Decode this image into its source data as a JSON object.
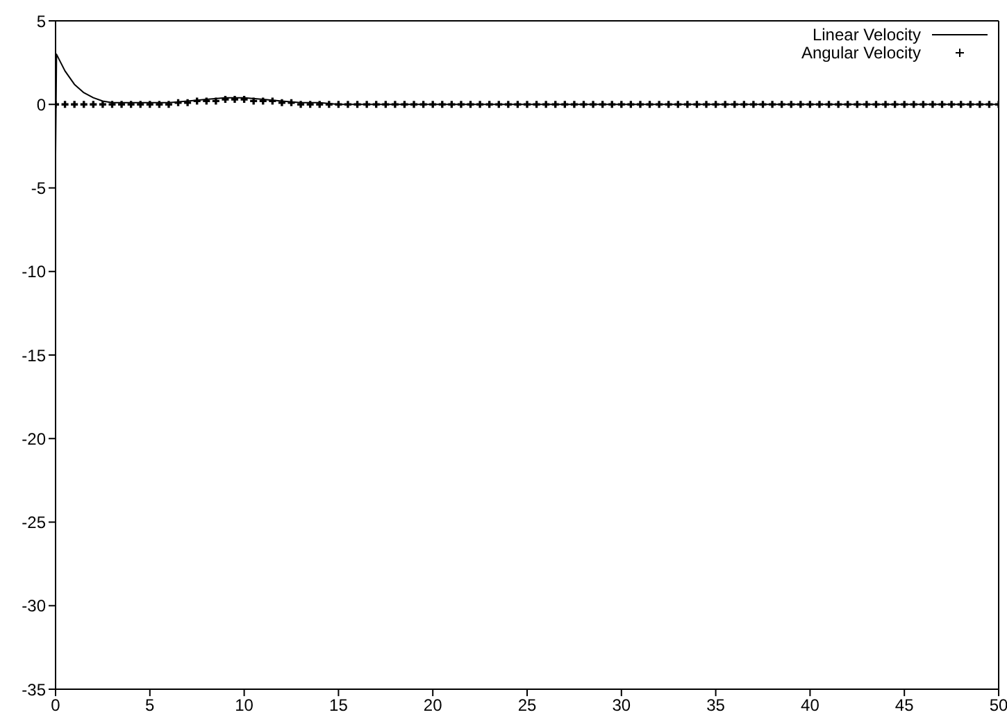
{
  "chart_data": {
    "type": "line",
    "xlim": [
      0,
      50
    ],
    "ylim": [
      -35,
      5
    ],
    "xticks": [
      0,
      5,
      10,
      15,
      20,
      25,
      30,
      35,
      40,
      45,
      50
    ],
    "yticks": [
      5,
      0,
      -5,
      -10,
      -15,
      -20,
      -25,
      -30,
      -35
    ],
    "legend": "top right",
    "series": [
      {
        "name": "Linear Velocity",
        "color": "#000000",
        "marker": "none",
        "x": [
          0,
          0.05,
          0.5,
          1,
          1.5,
          2,
          2.5,
          3,
          4,
          5,
          6,
          7,
          8,
          9,
          10,
          11,
          12,
          13,
          14,
          15,
          20,
          30,
          40,
          50
        ],
        "values": [
          -3,
          3,
          2,
          1.2,
          0.7,
          0.4,
          0.2,
          0.1,
          0.1,
          0.1,
          0.1,
          0.2,
          0.3,
          0.4,
          0.4,
          0.3,
          0.2,
          0.1,
          0.1,
          0,
          0,
          0,
          0,
          0
        ]
      },
      {
        "name": "Angular Velocity",
        "type": "scatter",
        "color": "#000000",
        "marker": "cross",
        "x": [
          0,
          0.5,
          1,
          1.5,
          2,
          2.5,
          3,
          3.5,
          4,
          4.5,
          5,
          5.5,
          6,
          6.5,
          7,
          7.5,
          8,
          8.5,
          9,
          9.5,
          10,
          10.5,
          11,
          11.5,
          12,
          12.5,
          13,
          13.5,
          14,
          14.5,
          15,
          15.5,
          16,
          16.5,
          17,
          17.5,
          18,
          18.5,
          19,
          19.5,
          20,
          20.5,
          21,
          21.5,
          22,
          22.5,
          23,
          23.5,
          24,
          24.5,
          25,
          25.5,
          26,
          26.5,
          27,
          27.5,
          28,
          28.5,
          29,
          29.5,
          30,
          30.5,
          31,
          31.5,
          32,
          32.5,
          33,
          33.5,
          34,
          34.5,
          35,
          35.5,
          36,
          36.5,
          37,
          37.5,
          38,
          38.5,
          39,
          39.5,
          40,
          40.5,
          41,
          41.5,
          42,
          42.5,
          43,
          43.5,
          44,
          44.5,
          45,
          45.5,
          46,
          46.5,
          47,
          47.5,
          48,
          48.5,
          49,
          49.5,
          50
        ],
        "values": [
          0,
          0,
          0,
          0,
          0,
          0,
          0,
          0,
          0,
          0,
          0,
          0,
          0,
          0.1,
          0.1,
          0.2,
          0.2,
          0.2,
          0.3,
          0.3,
          0.3,
          0.2,
          0.2,
          0.2,
          0.1,
          0.1,
          0,
          0,
          0,
          0,
          0,
          0,
          0,
          0,
          0,
          0,
          0,
          0,
          0,
          0,
          0,
          0,
          0,
          0,
          0,
          0,
          0,
          0,
          0,
          0,
          0,
          0,
          0,
          0,
          0,
          0,
          0,
          0,
          0,
          0,
          0,
          0,
          0,
          0,
          0,
          0,
          0,
          0,
          0,
          0,
          0,
          0,
          0,
          0,
          0,
          0,
          0,
          0,
          0,
          0,
          0,
          0,
          0,
          0,
          0,
          0,
          0,
          0,
          0,
          0,
          0,
          0,
          0,
          0,
          0,
          0,
          0,
          0,
          0,
          0,
          0
        ]
      }
    ]
  }
}
